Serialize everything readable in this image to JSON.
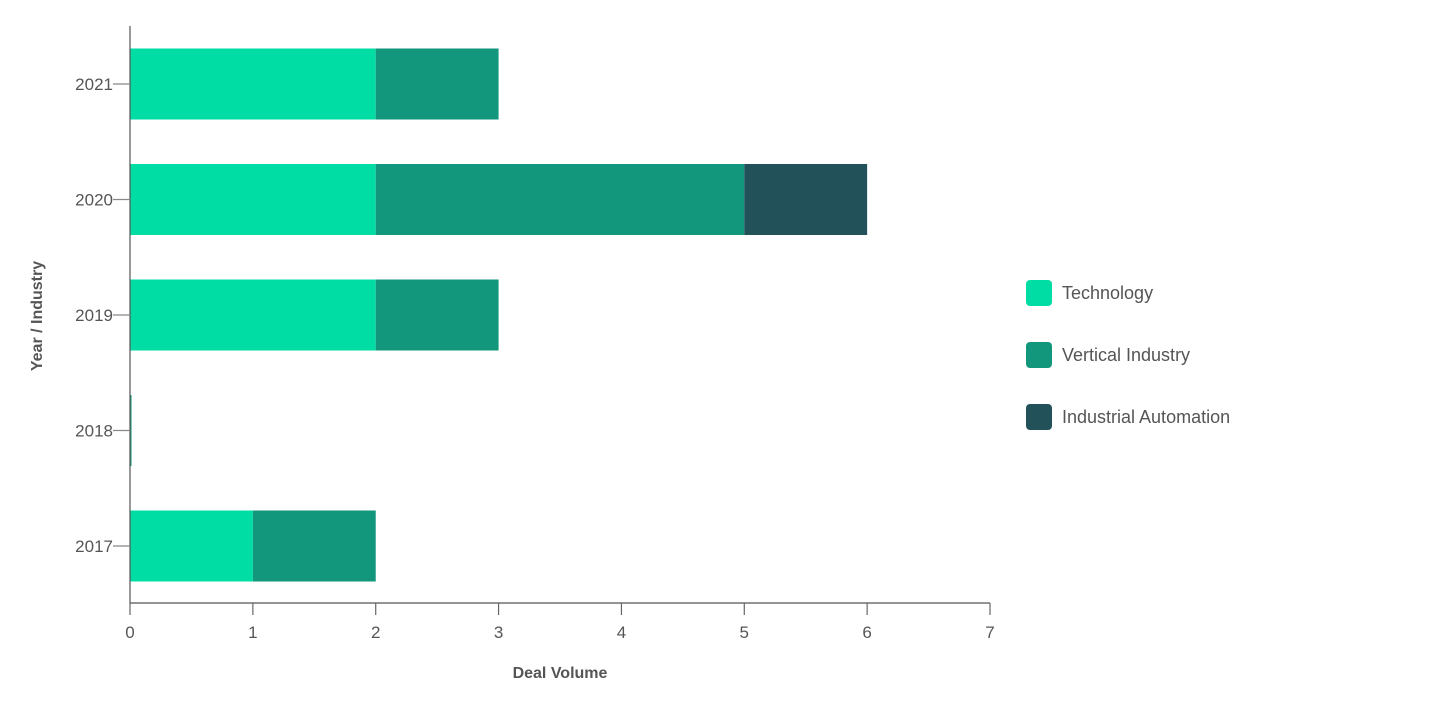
{
  "chart_data": {
    "type": "bar",
    "orientation": "horizontal",
    "stacked": true,
    "title": "",
    "xlabel": "Deal Volume",
    "ylabel": "Year / Industry",
    "categories": [
      "2021",
      "2020",
      "2019",
      "2018",
      "2017"
    ],
    "series": [
      {
        "name": "Technology",
        "color": "#00DDA4",
        "values": [
          2,
          2,
          2,
          0,
          1
        ]
      },
      {
        "name": "Vertical Industry",
        "color": "#12967C",
        "values": [
          1,
          3,
          1,
          0.01,
          1
        ]
      },
      {
        "name": "Industrial Automation",
        "color": "#235159",
        "values": [
          0,
          1,
          0,
          0,
          0
        ]
      }
    ],
    "xlim": [
      0,
      7
    ],
    "xticks": [
      "0",
      "1",
      "2",
      "3",
      "4",
      "5",
      "6",
      "7"
    ],
    "grid": false,
    "legend_position": "right"
  }
}
